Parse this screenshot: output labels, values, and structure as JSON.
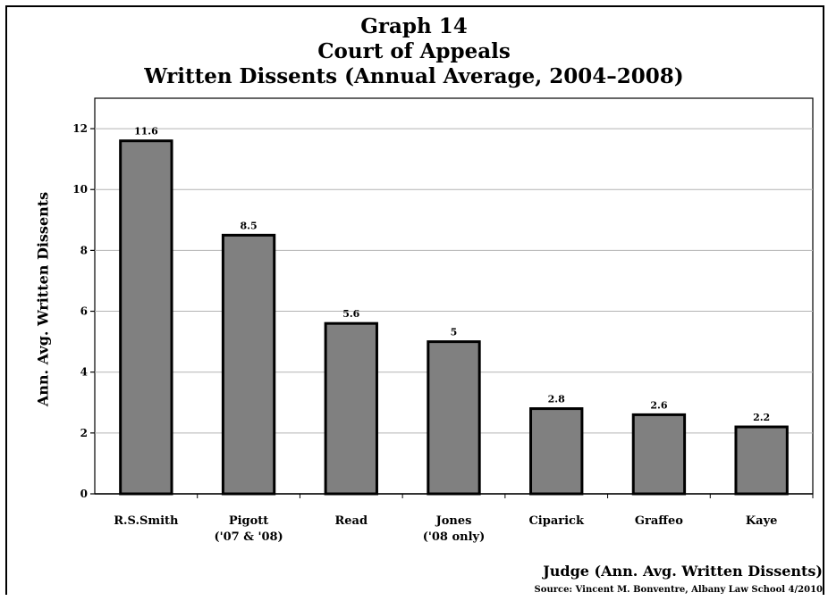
{
  "chart_data": {
    "type": "bar",
    "title_lines": [
      "Graph 14",
      "Court of Appeals",
      "Written Dissents (Annual Average, 2004–2008)"
    ],
    "ylabel": "Ann. Avg. Written Dissents",
    "xlabel": "Judge (Ann. Avg. Written Dissents)",
    "source": "Source: Vincent M. Bonventre, Albany Law School  4/2010",
    "categories": [
      [
        "R.S.Smith"
      ],
      [
        "Pigott",
        "('07 & '08)"
      ],
      [
        "Read"
      ],
      [
        "Jones",
        "('08 only)"
      ],
      [
        "Ciparick"
      ],
      [
        "Graffeo"
      ],
      [
        "Kaye"
      ]
    ],
    "values": [
      11.6,
      8.5,
      5.6,
      5,
      2.8,
      2.6,
      2.2
    ],
    "data_labels": [
      "11.6",
      "8.5",
      "5.6",
      "5",
      "2.8",
      "2.6",
      "2.2"
    ],
    "ylim": [
      0,
      13
    ],
    "yticks": [
      0,
      2,
      4,
      6,
      8,
      10,
      12
    ],
    "grid": true,
    "bar_color": "#808080",
    "legend": "none"
  }
}
